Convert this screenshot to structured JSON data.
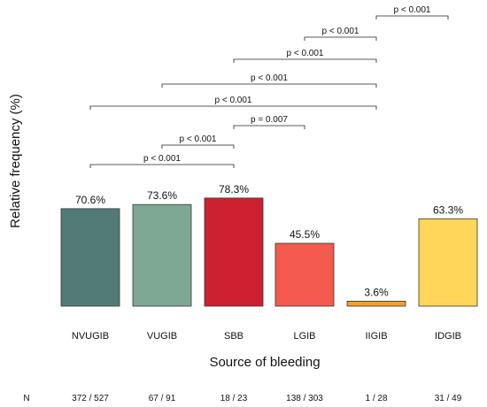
{
  "chart_data": {
    "type": "bar",
    "categories": [
      "NVUGIB",
      "VUGIB",
      "SBB",
      "LGIB",
      "IIGIB",
      "IDGIB"
    ],
    "values": [
      70.6,
      73.6,
      78.3,
      45.5,
      3.6,
      63.3
    ],
    "value_labels": [
      "70.6%",
      "73.6%",
      "78.3%",
      "45.5%",
      "3.6%",
      "63.3%"
    ],
    "colors": [
      "#527b76",
      "#7ea894",
      "#cd2030",
      "#f45a4e",
      "#f3a125",
      "#ffd65a"
    ],
    "ylabel": "Relative frequency (%)",
    "xlabel": "Source of bleeding",
    "ylim": [
      0,
      100
    ],
    "grid": false,
    "n_label": "N",
    "n_values": [
      "372 / 527",
      "67 / 91",
      "18 / 23",
      "138 / 303",
      "1 / 28",
      "31 / 49"
    ],
    "comparisons": [
      {
        "from": "NVUGIB",
        "to": "SBB",
        "label": "p < 0.001"
      },
      {
        "from": "VUGIB",
        "to": "SBB",
        "label": "p < 0.001"
      },
      {
        "from": "SBB",
        "to": "LGIB",
        "label": "p = 0.007"
      },
      {
        "from": "NVUGIB",
        "to": "IIGIB",
        "label": "p < 0.001"
      },
      {
        "from": "VUGIB",
        "to": "IIGIB",
        "label": "p < 0.001"
      },
      {
        "from": "SBB",
        "to": "IIGIB",
        "label": "p < 0.001"
      },
      {
        "from": "LGIB",
        "to": "IIGIB",
        "label": "p < 0.001"
      },
      {
        "from": "IIGIB",
        "to": "IDGIB",
        "label": "p < 0.001"
      }
    ]
  }
}
